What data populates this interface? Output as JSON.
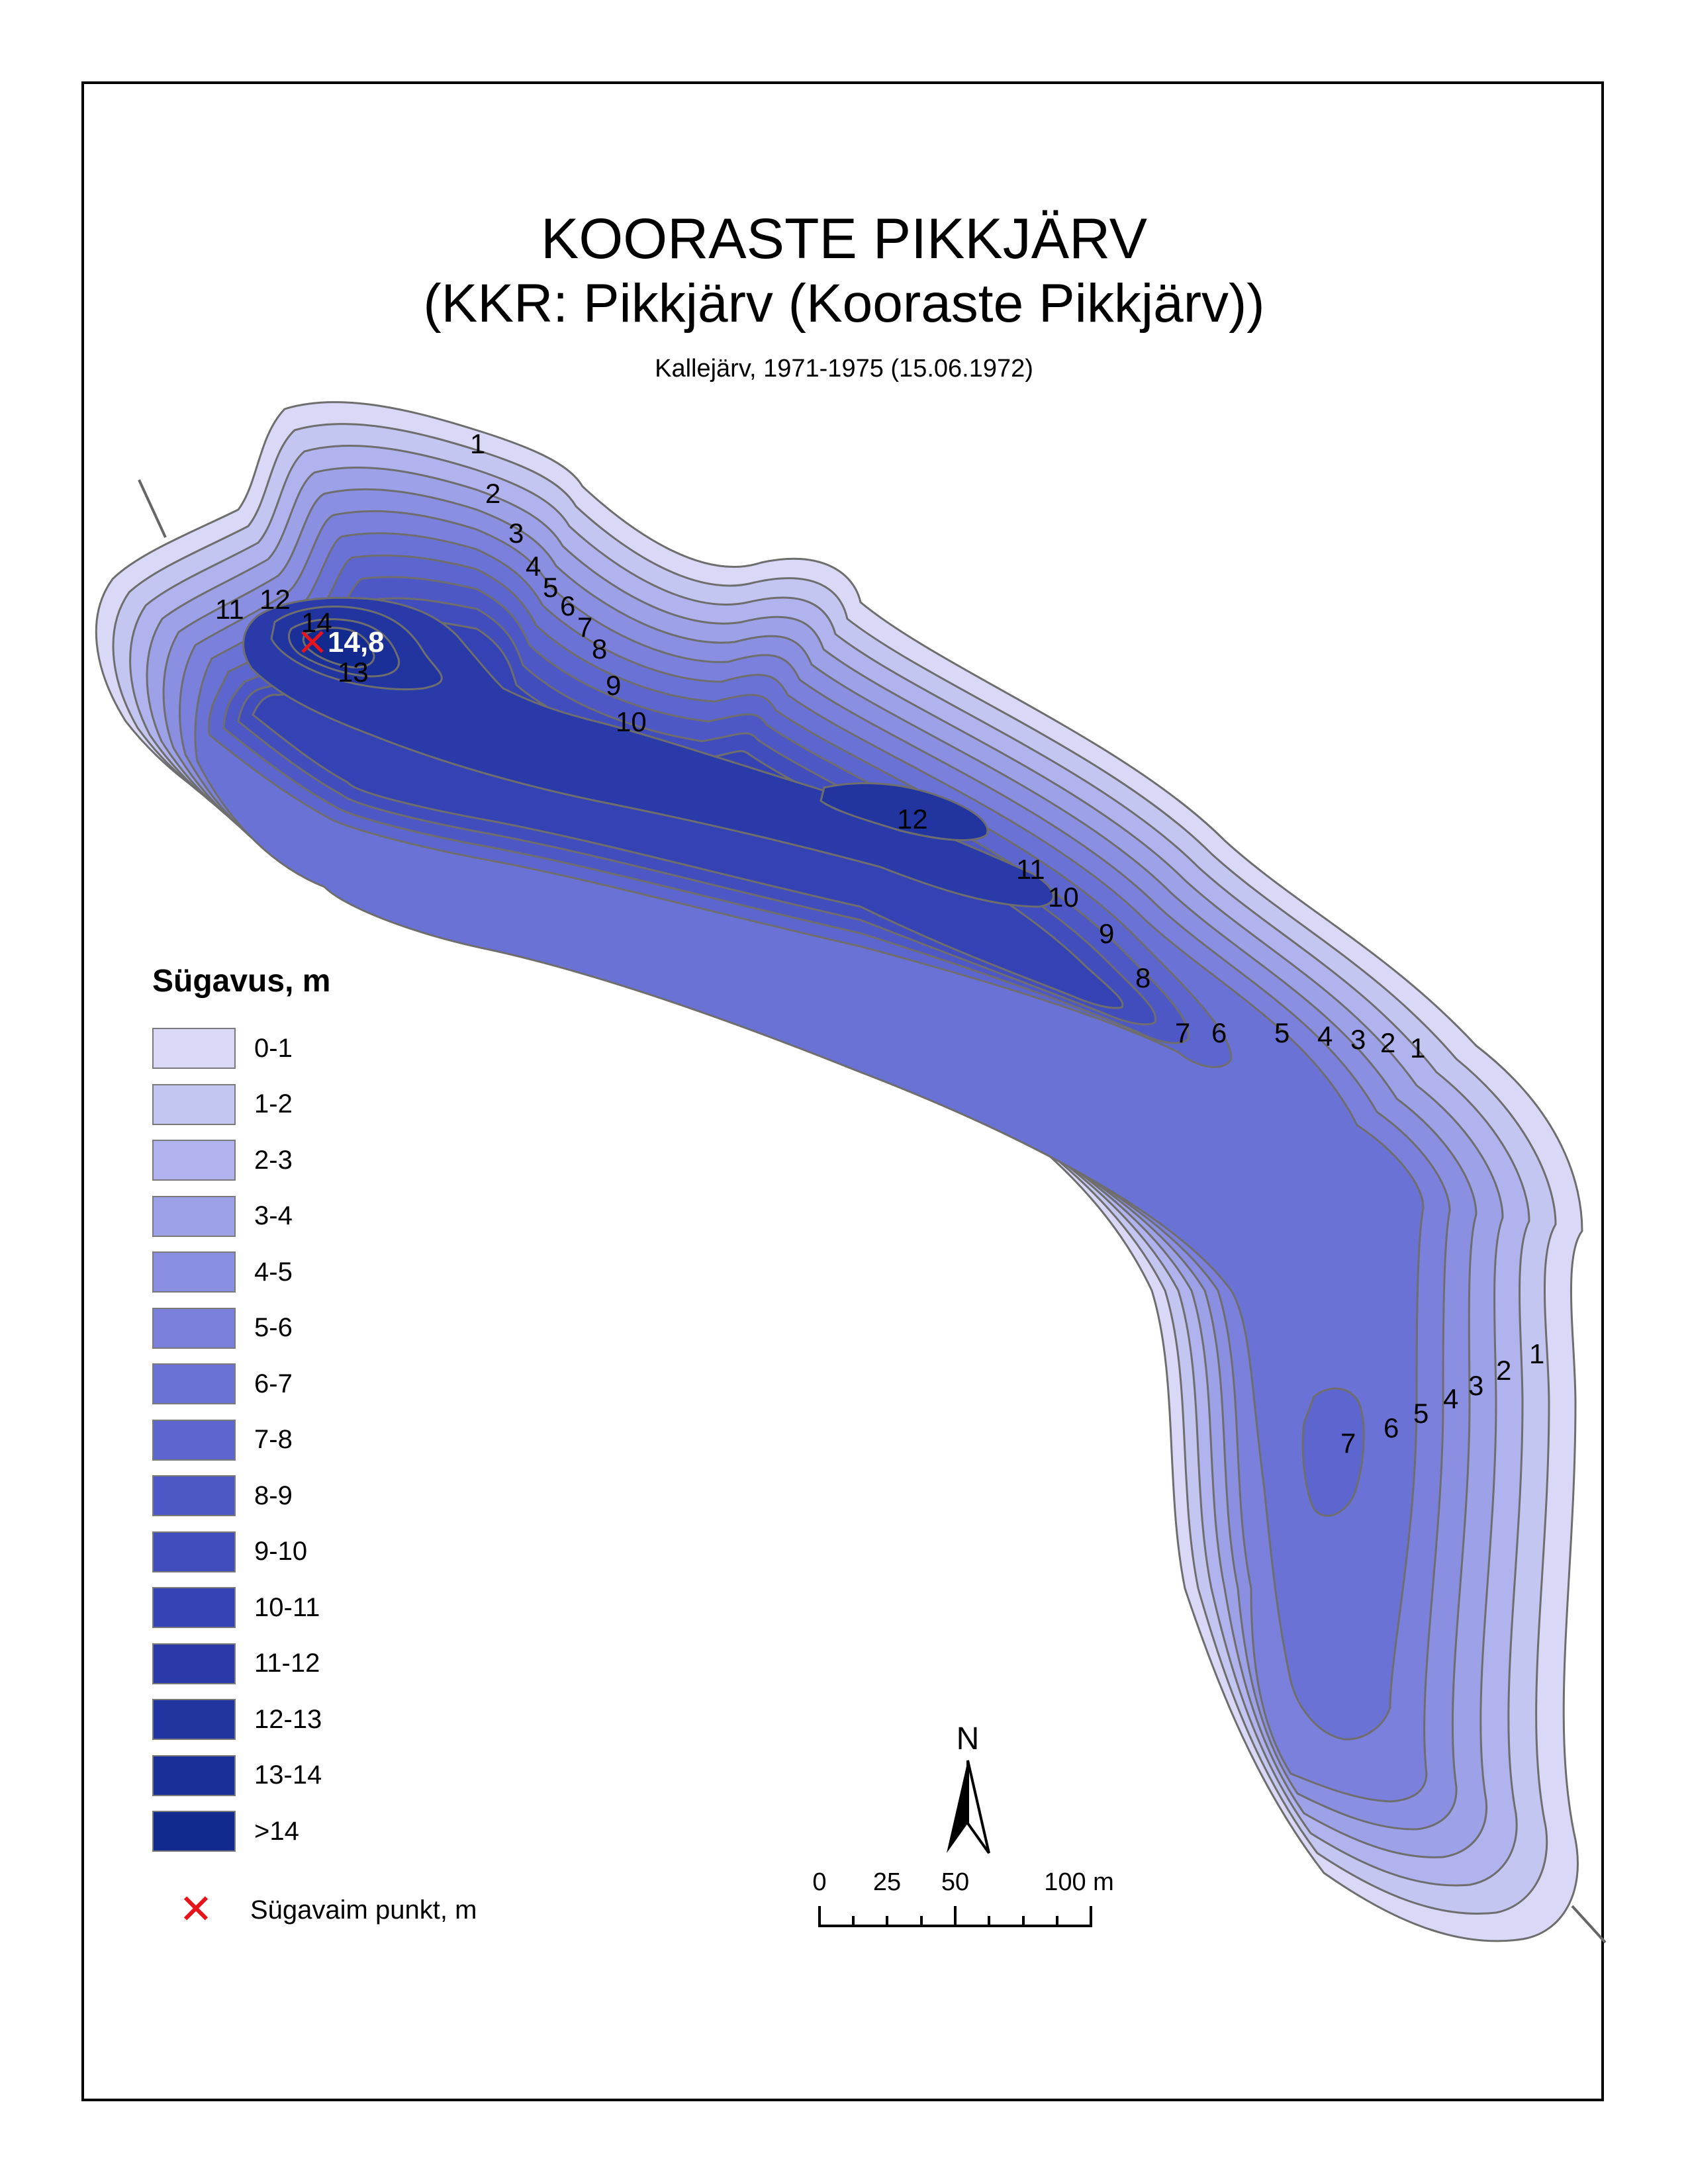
{
  "map": {
    "title": "KOORASTE PIKKJÄRV",
    "subtitle": "(KKR: Pikkjärv (Kooraste Pikkjärv))",
    "source": "Kallejärv, 1971-1975 (15.06.1972)"
  },
  "contour_labels": {
    "north_profile": [
      "1",
      "2",
      "3",
      "4",
      "5",
      "6",
      "7",
      "8",
      "9",
      "10"
    ],
    "west_basin": [
      "11",
      "12",
      "14",
      "13"
    ],
    "mid_basin": [
      "12",
      "11",
      "10",
      "9",
      "8"
    ],
    "bend_profile": [
      "7",
      "6",
      "5",
      "4",
      "3",
      "2",
      "1"
    ],
    "south_profile": [
      "1",
      "2",
      "3",
      "4",
      "5",
      "6",
      "7"
    ]
  },
  "deepest_point": {
    "value": "14,8"
  },
  "legend": {
    "title": "Sügavus, m",
    "classes": [
      {
        "label": "0-1",
        "color": "#d9d9f7"
      },
      {
        "label": "1-2",
        "color": "#c4c6f2"
      },
      {
        "label": "2-3",
        "color": "#b0b3ed"
      },
      {
        "label": "3-4",
        "color": "#9da1e8"
      },
      {
        "label": "4-5",
        "color": "#8a8fe2"
      },
      {
        "label": "5-6",
        "color": "#7a80dc"
      },
      {
        "label": "6-7",
        "color": "#6b72d6"
      },
      {
        "label": "7-8",
        "color": "#5d65cf"
      },
      {
        "label": "8-9",
        "color": "#4e57c6"
      },
      {
        "label": "9-10",
        "color": "#414cbd"
      },
      {
        "label": "10-11",
        "color": "#3542b3"
      },
      {
        "label": "11-12",
        "color": "#2a3aa8"
      },
      {
        "label": "12-13",
        "color": "#21349f"
      },
      {
        "label": "13-14",
        "color": "#1a2f97"
      },
      {
        "label": ">14",
        "color": "#122a8e"
      }
    ],
    "deepest_label": "Sügavaim punkt, m",
    "deepest_color": "#e8141b"
  },
  "north_arrow": {
    "label": "N"
  },
  "scale_bar": {
    "labels": [
      "0",
      "25",
      "50",
      "100 m"
    ]
  }
}
